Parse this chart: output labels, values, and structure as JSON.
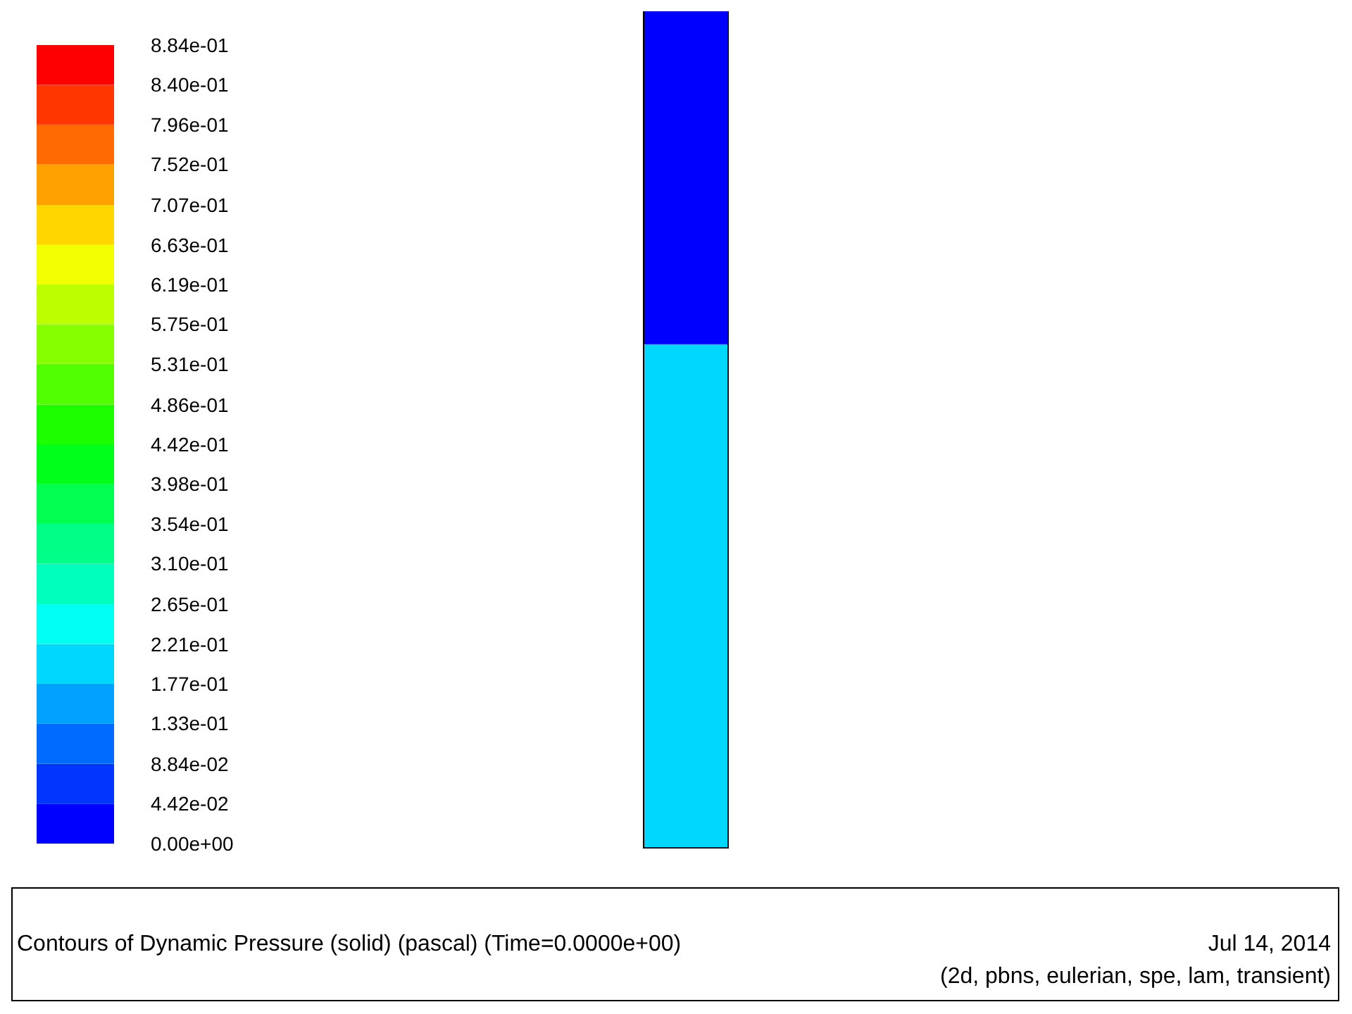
{
  "chart_data": {
    "type": "heatmap",
    "title": "Contours of Dynamic Pressure (solid)  (pascal)  (Time=0.0000e+00)",
    "annotations": [
      "Jul 14, 2014",
      "(2d, pbns, eulerian, spe, lam, transient)"
    ],
    "categories": [
      null
    ],
    "y_categories": [
      null,
      null,
      null,
      null,
      null,
      null,
      null,
      null,
      null,
      null
    ],
    "cells": [
      [
        0.02
      ],
      [
        0.02
      ],
      [
        0.02
      ],
      [
        0.02
      ],
      [
        0.2
      ],
      [
        0.2
      ],
      [
        0.2
      ],
      [
        0.2
      ],
      [
        0.2
      ],
      [
        0.2
      ]
    ],
    "clim": [
      0,
      0.884
    ],
    "cticks": [
      {
        "value": 0,
        "label": "0.00e+00"
      },
      {
        "value": 0.0442,
        "label": "4.42e-02"
      },
      {
        "value": 0.0884,
        "label": "8.84e-02"
      },
      {
        "value": 0.133,
        "label": "1.33e-01"
      },
      {
        "value": 0.177,
        "label": "1.77e-01"
      },
      {
        "value": 0.221,
        "label": "2.21e-01"
      },
      {
        "value": 0.265,
        "label": "2.65e-01"
      },
      {
        "value": 0.31,
        "label": "3.10e-01"
      },
      {
        "value": 0.354,
        "label": "3.54e-01"
      },
      {
        "value": 0.398,
        "label": "3.98e-01"
      },
      {
        "value": 0.442,
        "label": "4.42e-01"
      },
      {
        "value": 0.486,
        "label": "4.86e-01"
      },
      {
        "value": 0.531,
        "label": "5.31e-01"
      },
      {
        "value": 0.575,
        "label": "5.75e-01"
      },
      {
        "value": 0.619,
        "label": "6.19e-01"
      },
      {
        "value": 0.663,
        "label": "6.63e-01"
      },
      {
        "value": 0.707,
        "label": "7.07e-01"
      },
      {
        "value": 0.752,
        "label": "7.52e-01"
      },
      {
        "value": 0.796,
        "label": "7.96e-01"
      },
      {
        "value": 0.84,
        "label": "8.40e-01"
      },
      {
        "value": 0.884,
        "label": "8.84e-01"
      }
    ]
  }
}
